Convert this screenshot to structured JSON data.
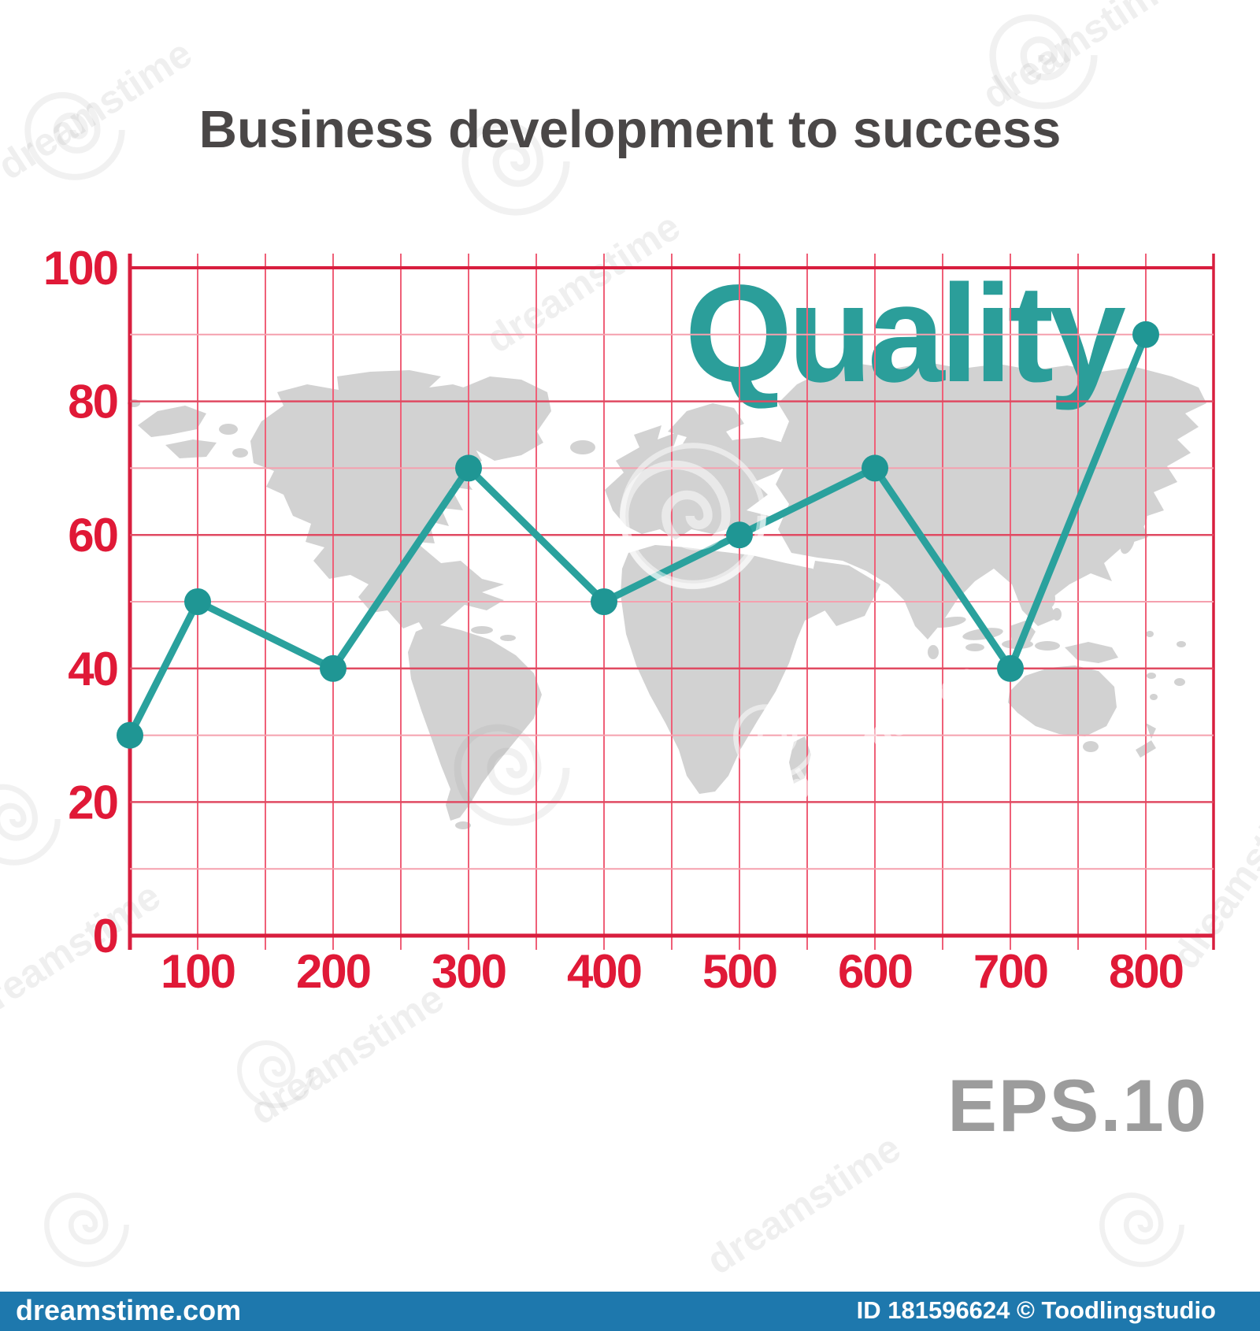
{
  "header": {
    "title": "Business development to success"
  },
  "series_label": {
    "text": "Quality"
  },
  "footer_note": {
    "text": "EPS.10"
  },
  "watermark": {
    "text": "dreamstime",
    "bar_site": "dreamstime.com",
    "bar_credit": "ID 181596624 © Toodlingstudio"
  },
  "colors": {
    "axis_red": "#d81e3e",
    "label_red": "#e01937",
    "grid_vertical": "#ef6078",
    "grid_minor": "#f5a0ae",
    "grid_major": "#e04a62",
    "series_teal": "#2aa19d",
    "series_dot_teal": "#1f9694",
    "quality_teal": "#2b9e9a",
    "map_gray": "#d2d2d2",
    "title_gray": "#4a4747",
    "eps_gray": "#9c9c9c",
    "footer_blue": "#1e78ad"
  },
  "chart_data": {
    "type": "line",
    "title": "Business development to success",
    "series": [
      {
        "name": "Quality",
        "x": [
          50,
          100,
          200,
          300,
          400,
          500,
          600,
          700,
          800
        ],
        "y": [
          30,
          50,
          40,
          70,
          50,
          60,
          70,
          40,
          90
        ]
      }
    ],
    "xlabel": "",
    "ylabel": "",
    "xlim": [
      50,
      850
    ],
    "ylim": [
      0,
      100
    ],
    "x_tick_labels": [
      100,
      200,
      300,
      400,
      500,
      600,
      700,
      800
    ],
    "y_tick_labels": [
      0,
      20,
      40,
      60,
      80,
      100
    ],
    "x_grid_step": 50,
    "y_grid_step": 10,
    "grid": true,
    "legend_position": "none",
    "series_label_position": "top-right",
    "background": "world-map silhouette"
  }
}
